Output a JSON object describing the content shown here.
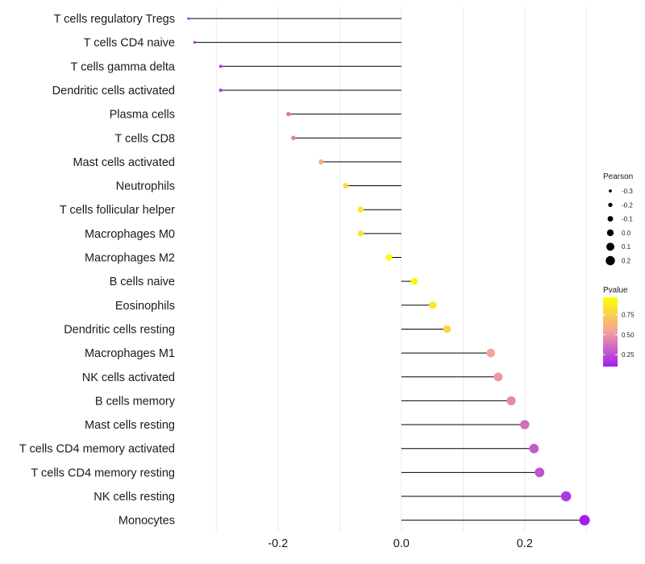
{
  "chart_data": {
    "type": "lollipop",
    "title": "",
    "xlabel": "",
    "ylabel": "",
    "xlim": [
      -0.35,
      0.31
    ],
    "x_ticks": [
      -0.2,
      0.0,
      0.2
    ],
    "x_tick_labels": [
      "-0.2",
      "0.0",
      "0.2"
    ],
    "categories": [
      "T cells regulatory  Tregs",
      "T cells CD4 naive",
      "T cells gamma delta",
      "Dendritic cells activated",
      "Plasma cells",
      "T cells CD8",
      "Mast cells activated",
      "Neutrophils",
      "T cells follicular helper",
      "Macrophages M0",
      "Macrophages M2",
      "B cells naive",
      "Eosinophils",
      "Dendritic cells resting",
      "Macrophages M1",
      "NK cells activated",
      "B cells memory",
      "Mast cells resting",
      "T cells CD4 memory activated",
      "T cells CD4 memory resting",
      "NK cells resting",
      "Monocytes"
    ],
    "pearson": [
      -0.345,
      -0.335,
      -0.293,
      -0.293,
      -0.183,
      -0.175,
      -0.13,
      -0.09,
      -0.066,
      -0.066,
      -0.02,
      0.021,
      0.051,
      0.074,
      0.145,
      0.157,
      0.178,
      0.2,
      0.215,
      0.224,
      0.267,
      0.297
    ],
    "pvalue": [
      0.1,
      0.12,
      0.15,
      0.15,
      0.4,
      0.42,
      0.6,
      0.8,
      0.85,
      0.85,
      0.95,
      0.93,
      0.86,
      0.78,
      0.55,
      0.5,
      0.45,
      0.36,
      0.3,
      0.27,
      0.18,
      0.1
    ],
    "size_legend": {
      "title": "Pearson",
      "values": [
        -0.3,
        -0.2,
        -0.1,
        0.0,
        0.1,
        0.2
      ],
      "labels": [
        "-0.3",
        "-0.2",
        "-0.1",
        "0.0",
        "0.1",
        "0.2"
      ]
    },
    "color_legend": {
      "title": "Pvalue",
      "range": [
        0.1,
        0.97
      ],
      "ticks": [
        0.25,
        0.5,
        0.75
      ],
      "tick_labels": [
        "0.25",
        "0.50",
        "0.75"
      ],
      "low_color": "#a020f0",
      "mid_color": "#f3a0a0",
      "high_color": "#ffff00"
    },
    "line_color": "#000000",
    "grid_color": "#ebebeb"
  }
}
